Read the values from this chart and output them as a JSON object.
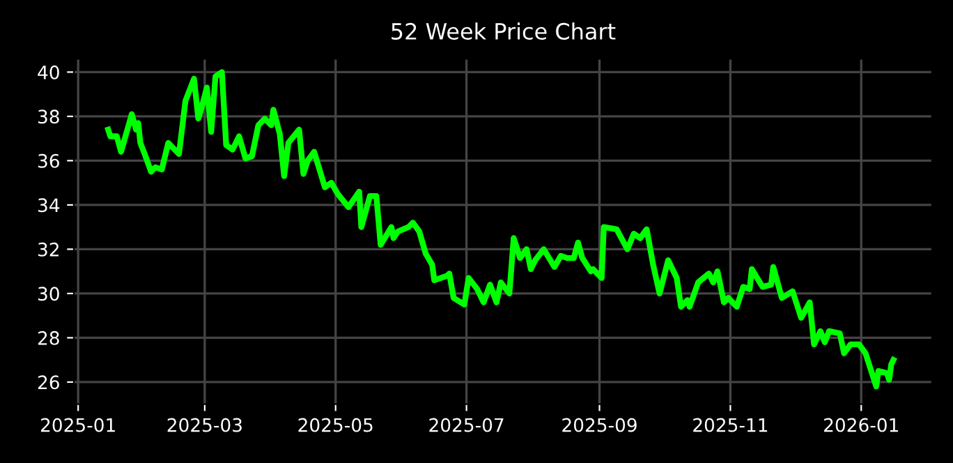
{
  "chart_data": {
    "type": "line",
    "title": "52 Week Price Chart",
    "x": [
      "2025-01-15",
      "2025-01-16",
      "2025-01-19",
      "2025-01-21",
      "2025-01-26",
      "2025-01-28",
      "2025-01-29",
      "2025-01-30",
      "2025-02-01",
      "2025-02-04",
      "2025-02-06",
      "2025-02-09",
      "2025-02-12",
      "2025-02-17",
      "2025-02-20",
      "2025-02-24",
      "2025-02-26",
      "2025-02-27",
      "2025-03-02",
      "2025-03-04",
      "2025-03-06",
      "2025-03-09",
      "2025-03-11",
      "2025-03-14",
      "2025-03-17",
      "2025-03-20",
      "2025-03-23",
      "2025-03-26",
      "2025-03-29",
      "2025-04-01",
      "2025-04-02",
      "2025-04-05",
      "2025-04-07",
      "2025-04-09",
      "2025-04-14",
      "2025-04-16",
      "2025-04-18",
      "2025-04-21",
      "2025-04-26",
      "2025-04-29",
      "2025-05-02",
      "2025-05-07",
      "2025-05-12",
      "2025-05-13",
      "2025-05-17",
      "2025-05-20",
      "2025-05-22",
      "2025-05-27",
      "2025-05-28",
      "2025-05-30",
      "2025-06-04",
      "2025-06-06",
      "2025-06-09",
      "2025-06-12",
      "2025-06-15",
      "2025-06-16",
      "2025-06-22",
      "2025-06-23",
      "2025-06-25",
      "2025-06-30",
      "2025-07-02",
      "2025-07-06",
      "2025-07-09",
      "2025-07-12",
      "2025-07-15",
      "2025-07-17",
      "2025-07-21",
      "2025-07-23",
      "2025-07-26",
      "2025-07-29",
      "2025-07-31",
      "2025-08-02",
      "2025-08-06",
      "2025-08-11",
      "2025-08-14",
      "2025-08-17",
      "2025-08-20",
      "2025-08-22",
      "2025-08-24",
      "2025-08-28",
      "2025-08-29",
      "2025-09-02",
      "2025-09-03",
      "2025-09-09",
      "2025-09-14",
      "2025-09-17",
      "2025-09-20",
      "2025-09-23",
      "2025-09-26",
      "2025-09-29",
      "2025-10-03",
      "2025-10-07",
      "2025-10-09",
      "2025-10-12",
      "2025-10-13",
      "2025-10-17",
      "2025-10-22",
      "2025-10-24",
      "2025-10-26",
      "2025-10-29",
      "2025-10-31",
      "2025-11-04",
      "2025-11-07",
      "2025-11-10",
      "2025-11-11",
      "2025-11-16",
      "2025-11-20",
      "2025-11-21",
      "2025-11-25",
      "2025-11-30",
      "2025-12-04",
      "2025-12-08",
      "2025-12-10",
      "2025-12-13",
      "2025-12-15",
      "2025-12-17",
      "2025-12-22",
      "2025-12-24",
      "2025-12-27",
      "2025-12-31",
      "2026-01-03",
      "2026-01-06",
      "2026-01-08",
      "2026-01-09",
      "2026-01-13",
      "2026-01-14",
      "2026-01-15",
      "2026-01-16"
    ],
    "series": [
      {
        "color": "#00ff00",
        "values": [
          37.4,
          37.1,
          37.1,
          36.4,
          38.1,
          37.4,
          37.7,
          36.8,
          36.3,
          35.5,
          35.7,
          35.6,
          36.8,
          36.3,
          38.7,
          39.7,
          37.9,
          38.2,
          39.3,
          37.3,
          39.8,
          40.0,
          36.7,
          36.5,
          37.1,
          36.1,
          36.2,
          37.6,
          37.9,
          37.6,
          38.3,
          37.2,
          35.3,
          36.8,
          37.4,
          35.4,
          36.0,
          36.4,
          34.8,
          35.0,
          34.5,
          33.9,
          34.6,
          33.0,
          34.4,
          34.4,
          32.2,
          33.0,
          32.5,
          32.8,
          33.0,
          33.2,
          32.8,
          31.8,
          31.3,
          30.6,
          30.8,
          30.9,
          29.8,
          29.5,
          30.7,
          30.2,
          29.6,
          30.4,
          29.6,
          30.5,
          30.0,
          32.5,
          31.6,
          32.0,
          31.1,
          31.5,
          32.0,
          31.2,
          31.7,
          31.6,
          31.6,
          32.3,
          31.6,
          31.0,
          31.1,
          30.7,
          33.0,
          32.9,
          32.0,
          32.7,
          32.5,
          32.9,
          31.3,
          30.0,
          31.5,
          30.7,
          29.4,
          29.7,
          29.4,
          30.5,
          30.9,
          30.5,
          31.0,
          29.6,
          29.8,
          29.4,
          30.3,
          30.2,
          31.1,
          30.3,
          30.4,
          31.2,
          29.8,
          30.1,
          28.9,
          29.6,
          27.7,
          28.3,
          27.8,
          28.3,
          28.2,
          27.3,
          27.7,
          27.7,
          27.3,
          26.4,
          25.8,
          26.5,
          26.4,
          26.1,
          26.8,
          27.0
        ]
      }
    ],
    "xlim": [
      "2024-12-30",
      "2026-02-03"
    ],
    "ylim": [
      25.0,
      40.6
    ],
    "xticks": [
      "2025-01",
      "2025-03",
      "2025-05",
      "2025-07",
      "2025-09",
      "2025-11",
      "2026-01"
    ],
    "yticks": [
      26,
      28,
      30,
      32,
      34,
      36,
      38,
      40
    ],
    "grid": true,
    "line_style": "solid",
    "marker": "none"
  }
}
